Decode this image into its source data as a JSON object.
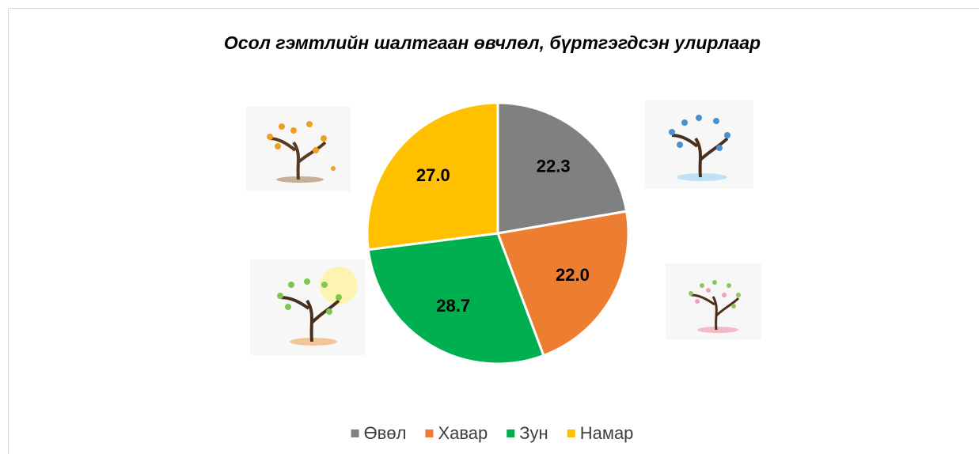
{
  "chart_data": {
    "type": "pie",
    "title": "Осол гэмтлийн шалтгаан өвчлөл, бүртгэгдсэн улирлаар",
    "categories": [
      "Өвөл",
      "Хавар",
      "Зун",
      "Намар"
    ],
    "values": [
      22.3,
      22.0,
      28.7,
      27.0
    ],
    "value_labels": [
      "22.3",
      "22.0",
      "28.7",
      "27.0"
    ],
    "colors": [
      "#808080",
      "#ed7d31",
      "#00b050",
      "#ffc000"
    ],
    "legend": "bottom"
  }
}
